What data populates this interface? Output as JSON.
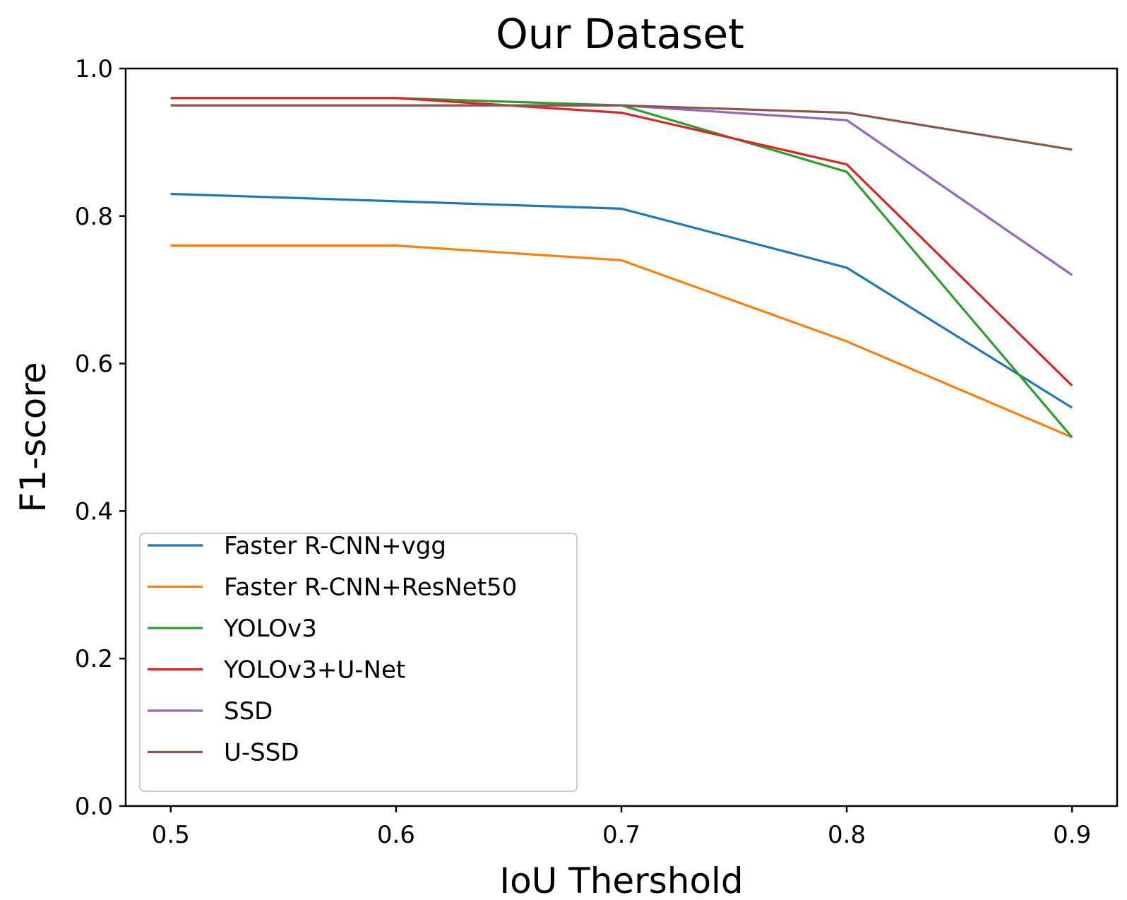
{
  "chart_data": {
    "type": "line",
    "title": "Our Dataset",
    "xlabel": "IoU Thershold",
    "ylabel": "F1-score",
    "x": [
      0.5,
      0.6,
      0.7,
      0.8,
      0.9
    ],
    "xticks": [
      "0.5",
      "0.6",
      "0.7",
      "0.8",
      "0.9"
    ],
    "yticks": [
      "0.0",
      "0.2",
      "0.4",
      "0.6",
      "0.8",
      "1.0"
    ],
    "xlim": [
      0.48,
      0.92
    ],
    "ylim": [
      0.0,
      1.0
    ],
    "grid": false,
    "legend_position": "lower-left",
    "series": [
      {
        "name": "Faster R-CNN+vgg",
        "color": "#1f77b4",
        "values": [
          0.83,
          0.82,
          0.81,
          0.73,
          0.54
        ]
      },
      {
        "name": "Faster R-CNN+ResNet50",
        "color": "#ff7f0e",
        "values": [
          0.76,
          0.76,
          0.74,
          0.63,
          0.5
        ]
      },
      {
        "name": "YOLOv3",
        "color": "#2ca02c",
        "values": [
          0.96,
          0.96,
          0.95,
          0.86,
          0.5
        ]
      },
      {
        "name": "YOLOv3+U-Net",
        "color": "#d62728",
        "values": [
          0.96,
          0.96,
          0.94,
          0.87,
          0.57
        ]
      },
      {
        "name": "SSD",
        "color": "#9467bd",
        "values": [
          0.95,
          0.95,
          0.95,
          0.93,
          0.72
        ]
      },
      {
        "name": "U-SSD",
        "color": "#8c564b",
        "values": [
          0.95,
          0.95,
          0.95,
          0.94,
          0.89
        ]
      }
    ]
  }
}
